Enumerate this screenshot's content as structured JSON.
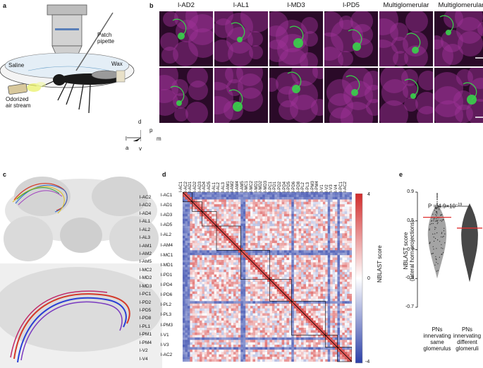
{
  "panel_labels": {
    "a": "a",
    "b": "b",
    "c": "c",
    "d": "d",
    "e": "e"
  },
  "panel_a": {
    "patch_pipette": "Patch\npipette",
    "saline": "Saline",
    "wax": "Wax",
    "odor": "Odorized\nair stream",
    "axes": {
      "d": "d",
      "p": "p",
      "l": "l",
      "m": "m",
      "a": "a",
      "v": "v"
    }
  },
  "panel_b": {
    "columns": [
      "l-AD2",
      "l-AL1",
      "l-MD3",
      "l-PD5",
      "Multiglomerular",
      "Multiglomerular"
    ]
  },
  "panel_d": {
    "colorbar_label": "NBLAST score",
    "colorbar_ticks": [
      "4",
      "0",
      "-4"
    ],
    "row_labels_left": [
      "l-AC2",
      "l-AD2",
      "l-AD4",
      "l-AL1",
      "l-AL2",
      "l-AL3",
      "l-AM1",
      "l-AM2",
      "l-AM5",
      "l-MC2",
      "l-MD2",
      "l-MD3",
      "l-PC1",
      "l-PD2",
      "l-PD5",
      "l-PD8",
      "l-PL1",
      "l-PM1",
      "l-PM4",
      "l-V2",
      "l-V4"
    ],
    "row_labels_right": [
      "l-AC1",
      "l-AD1",
      "l-AD3",
      "l-AD5",
      "l-AL2",
      "l-AM4",
      "l-MC1",
      "l-MD1",
      "l-PD1",
      "l-PD4",
      "l-PD6",
      "l-PL2",
      "l-PL3",
      "l-PM3",
      "l-V1",
      "l-V3",
      "l-AC2"
    ],
    "row_extra": [
      "l-AC1",
      "l-PC1"
    ],
    "col_labels": [
      "l-AC1",
      "l-AC2",
      "l-AD1",
      "l-AD2",
      "l-AD3",
      "l-AD4",
      "l-AD5",
      "l-AL1",
      "l-AL2",
      "l-AL3",
      "l-AM1",
      "l-AM2",
      "l-AM4",
      "l-AM5",
      "l-MC1",
      "l-MC2",
      "l-MD1",
      "l-MD2",
      "l-MD3",
      "l-PC1",
      "l-PD1",
      "l-PD2",
      "l-PD4",
      "l-PD5",
      "l-PD6",
      "l-PD8",
      "l-PL2",
      "l-PL3",
      "l-PM3",
      "l-PM4",
      "l-V1",
      "l-V2",
      "l-V3",
      "l-V4",
      "l-PC1",
      "l-AC2"
    ]
  },
  "chart_data": {
    "type": "violin",
    "title": "",
    "ylabel": "NBLAST score\n(lateral horn projections)",
    "ylim": [
      -0.7,
      0.9
    ],
    "yticks": [
      "0.9",
      "0.5",
      "0.1",
      "-0.3",
      "-0.7"
    ],
    "categories": [
      "PNs\ninnervating\nsame\nglomerulus",
      "PNs\ninnervating\ndifferent\nglomeruli"
    ],
    "medians": [
      0.55,
      0.4
    ],
    "annotation": "P = 4.9×10",
    "annotation_exp": "−19",
    "colors": {
      "same": "#9a9a9a",
      "different": "#333333",
      "median": "#e03030"
    }
  },
  "colors": {
    "green": "#39d24a",
    "magenta": "#a0329a",
    "heat_pos": "#d22b2b",
    "heat_neg": "#2b3fa8"
  }
}
